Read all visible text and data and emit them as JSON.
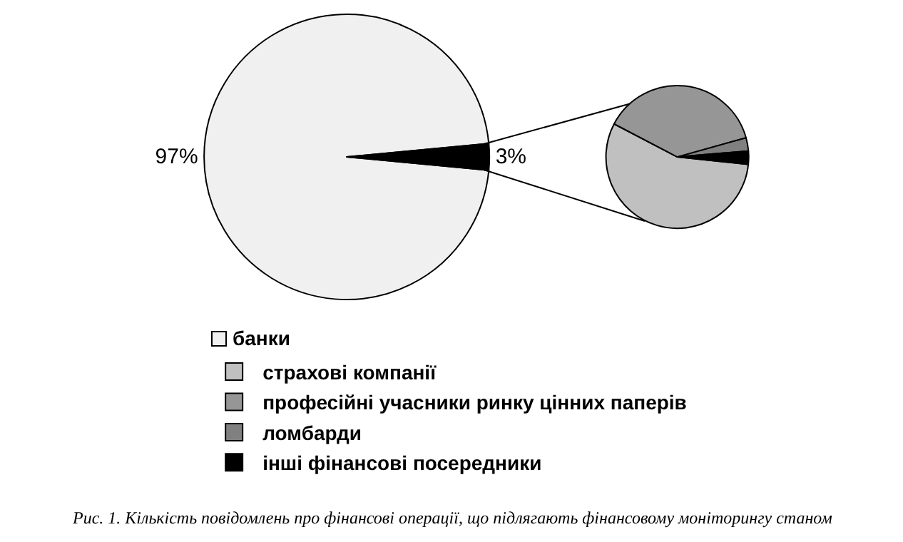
{
  "chart_data": [
    {
      "type": "pie",
      "categories": [
        "банки",
        null
      ],
      "values": [
        97,
        3
      ],
      "value_labels": [
        "97%",
        "3%"
      ],
      "colors": [
        "#f0f0f0",
        "#000000"
      ],
      "legend": "bottom",
      "annotations": [
        "Рис. 1. Кількість повідомлень про фінансові операції, що підлягають фінансовому моніторингу станом"
      ]
    },
    {
      "type": "pie",
      "categories": [
        "страхові компанії",
        "професійні учасники ринку цінних паперів",
        "ломбарди",
        "інші фінансові посередники"
      ],
      "values": [
        56,
        38,
        3,
        3
      ],
      "colors": [
        "#c0c0c0",
        "#969696",
        "#808080",
        "#000000"
      ],
      "legend": "bottom"
    }
  ]
}
